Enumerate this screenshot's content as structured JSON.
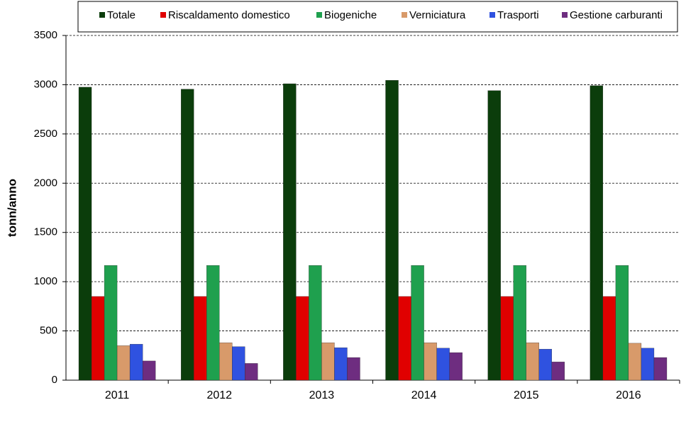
{
  "chart_data": {
    "type": "bar",
    "y_label": "tonn/anno",
    "categories": [
      "2011",
      "2012",
      "2013",
      "2014",
      "2015",
      "2016"
    ],
    "series": [
      {
        "name": "Totale",
        "color": "#0b3d0b",
        "values": [
          2975,
          2955,
          3010,
          3045,
          2940,
          2990
        ]
      },
      {
        "name": "Riscaldamento domestico",
        "color": "#e00000",
        "values": [
          850,
          850,
          850,
          850,
          850,
          850
        ]
      },
      {
        "name": "Biogeniche",
        "color": "#1fa04e",
        "values": [
          1165,
          1165,
          1165,
          1165,
          1165,
          1165
        ]
      },
      {
        "name": "Verniciatura",
        "color": "#d89a6a",
        "values": [
          350,
          380,
          380,
          380,
          380,
          375
        ]
      },
      {
        "name": "Trasporti",
        "color": "#2f52e0",
        "values": [
          365,
          340,
          330,
          325,
          315,
          325
        ]
      },
      {
        "name": "Gestione carburanti",
        "color": "#6e2d80",
        "values": [
          195,
          170,
          230,
          280,
          185,
          230
        ]
      }
    ],
    "ylim": [
      0,
      3500
    ],
    "yticks": [
      0,
      500,
      1000,
      1500,
      2000,
      2500,
      3000,
      3500
    ],
    "grid": true
  }
}
